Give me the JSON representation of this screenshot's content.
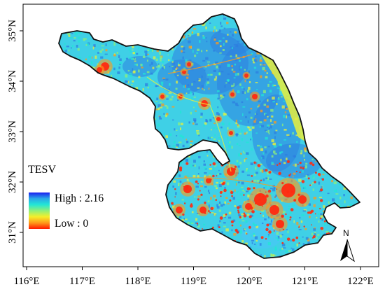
{
  "map": {
    "x_ticks": [
      "116°E",
      "117°E",
      "118°E",
      "119°E",
      "120°E",
      "121°E",
      "122°E"
    ],
    "y_ticks": [
      "35°N",
      "34°N",
      "33°N",
      "32°N",
      "31°N"
    ]
  },
  "legend": {
    "title": "TESV",
    "high_label": "High : 2.16",
    "low_label": "Low : 0",
    "gradient": [
      "#1b1ff0",
      "#2aa8e8",
      "#22e6d6",
      "#8ef07a",
      "#f5ef2a",
      "#ff9a1a",
      "#ff1a00"
    ]
  },
  "north_arrow": {
    "letter": "N"
  },
  "colors": {
    "land_base": "#3fd0e6",
    "dense_blue": "#2d7fe0",
    "yellow": "#e8ef3c",
    "hotspot": "#ff2a10",
    "boundary": "#111111"
  },
  "chart_data": {
    "type": "heatmap",
    "x_axis": {
      "ticks": [
        "116°E",
        "117°E",
        "118°E",
        "119°E",
        "120°E",
        "121°E",
        "122°E"
      ],
      "range": [
        116,
        122
      ]
    },
    "y_axis": {
      "ticks": [
        "31°N",
        "32°N",
        "33°N",
        "34°N",
        "35°N"
      ],
      "range": [
        30.7,
        35.25
      ]
    },
    "legend": {
      "title": "TESV",
      "max": 2.16,
      "min": 0,
      "max_label": "High : 2.16",
      "min_label": "Low : 0"
    },
    "grid": false
  }
}
